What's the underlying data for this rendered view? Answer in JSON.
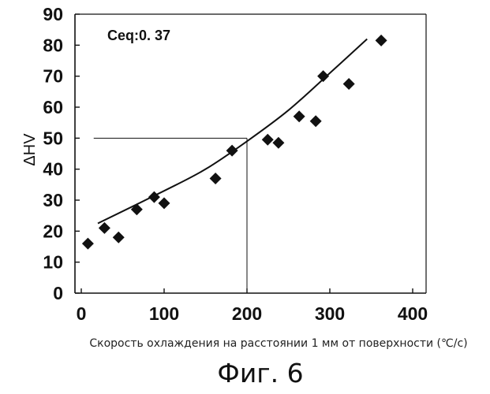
{
  "chart_data": {
    "type": "scatter",
    "title": "",
    "xlabel": "Скорость охлаждения на расстоянии 1 мм от поверхности (℃/с)",
    "ylabel": "ΔHV",
    "xlim": [
      0,
      400
    ],
    "ylim": [
      0,
      90
    ],
    "xticks": [
      "0",
      "100",
      "200",
      "300",
      "400"
    ],
    "yticks": [
      "0",
      "10",
      "20",
      "30",
      "40",
      "50",
      "60",
      "70",
      "80",
      "90"
    ],
    "grid": false,
    "annotation": "Ceq:0. 37",
    "points": [
      {
        "x": 8,
        "y": 16
      },
      {
        "x": 28,
        "y": 21
      },
      {
        "x": 45,
        "y": 18
      },
      {
        "x": 67,
        "y": 27
      },
      {
        "x": 88,
        "y": 31
      },
      {
        "x": 100,
        "y": 29
      },
      {
        "x": 162,
        "y": 37
      },
      {
        "x": 182,
        "y": 46
      },
      {
        "x": 225,
        "y": 49.5
      },
      {
        "x": 238,
        "y": 48.5
      },
      {
        "x": 263,
        "y": 57
      },
      {
        "x": 283,
        "y": 55.5
      },
      {
        "x": 292,
        "y": 70
      },
      {
        "x": 323,
        "y": 67.5
      },
      {
        "x": 362,
        "y": 81.5
      }
    ],
    "trend_line": [
      {
        "x": 20,
        "y": 22.5
      },
      {
        "x": 100,
        "y": 33
      },
      {
        "x": 150,
        "y": 40
      },
      {
        "x": 200,
        "y": 49
      },
      {
        "x": 250,
        "y": 59
      },
      {
        "x": 300,
        "y": 71
      },
      {
        "x": 345,
        "y": 82
      }
    ],
    "reference_point": {
      "x": 200,
      "y": 50
    }
  },
  "caption": "Фиг. 6"
}
